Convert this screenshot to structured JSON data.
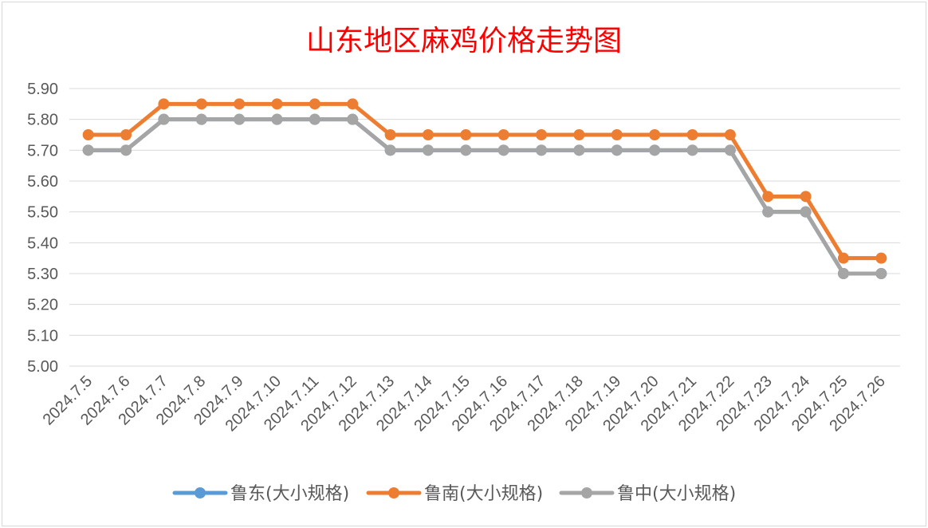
{
  "chart_data": {
    "type": "line",
    "title": "山东地区麻鸡价格走势图",
    "xlabel": "",
    "ylabel": "",
    "categories": [
      "2024.7.5",
      "2024.7.6",
      "2024.7.7",
      "2024.7.8",
      "2024.7.9",
      "2024.7.10",
      "2024.7.11",
      "2024.7.12",
      "2024.7.13",
      "2024.7.14",
      "2024.7.15",
      "2024.7.16",
      "2024.7.17",
      "2024.7.18",
      "2024.7.19",
      "2024.7.20",
      "2024.7.21",
      "2024.7.22",
      "2024.7.23",
      "2024.7.24",
      "2024.7.25",
      "2024.7.26"
    ],
    "ylim": [
      5.0,
      5.9
    ],
    "yticks": [
      "5.00",
      "5.10",
      "5.20",
      "5.30",
      "5.40",
      "5.50",
      "5.60",
      "5.70",
      "5.80",
      "5.90"
    ],
    "grid": true,
    "legend_position": "bottom",
    "series": [
      {
        "name": "鲁东(大小规格)",
        "color": "#5b9bd5",
        "values": [
          5.7,
          5.7,
          5.8,
          5.8,
          5.8,
          5.8,
          5.8,
          5.8,
          5.7,
          5.7,
          5.7,
          5.7,
          5.7,
          5.7,
          5.7,
          5.7,
          5.7,
          5.7,
          5.5,
          5.5,
          5.3,
          5.3
        ]
      },
      {
        "name": "鲁南(大小规格)",
        "color": "#ed7d31",
        "values": [
          5.75,
          5.75,
          5.85,
          5.85,
          5.85,
          5.85,
          5.85,
          5.85,
          5.75,
          5.75,
          5.75,
          5.75,
          5.75,
          5.75,
          5.75,
          5.75,
          5.75,
          5.75,
          5.55,
          5.55,
          5.35,
          5.35
        ]
      },
      {
        "name": "鲁中(大小规格)",
        "color": "#a5a5a5",
        "values": [
          5.7,
          5.7,
          5.8,
          5.8,
          5.8,
          5.8,
          5.8,
          5.8,
          5.7,
          5.7,
          5.7,
          5.7,
          5.7,
          5.7,
          5.7,
          5.7,
          5.7,
          5.7,
          5.5,
          5.5,
          5.3,
          5.3
        ]
      }
    ],
    "title_color": "#ff0000"
  }
}
